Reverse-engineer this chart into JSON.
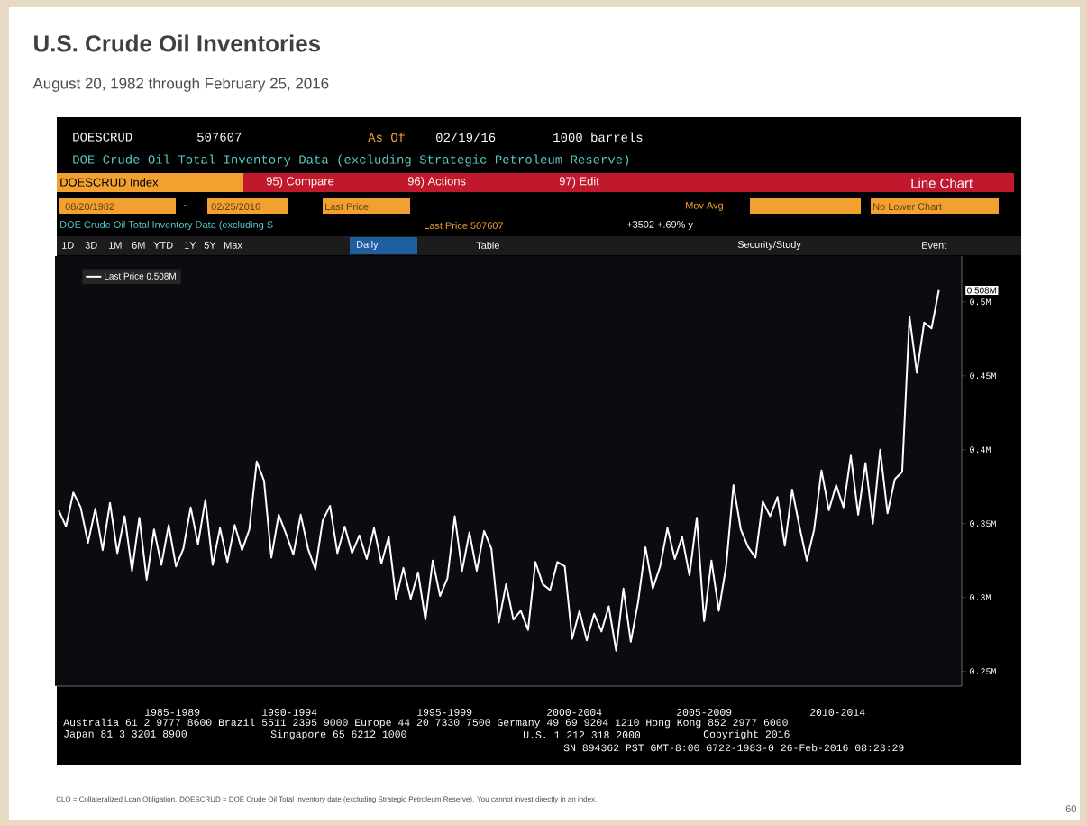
{
  "chart_data": {
    "type": "line",
    "title": "U.S. Crude Oil Inventories",
    "subtitle": "August 20, 1982 through February 25, 2016",
    "categories": [
      null,
      null,
      null,
      null,
      null,
      null,
      null,
      null,
      null,
      null,
      null,
      null,
      null,
      null,
      null,
      null,
      null,
      null,
      null,
      null,
      null,
      null,
      null,
      null,
      null,
      null,
      null,
      null,
      null,
      null,
      null,
      null,
      null,
      null,
      null,
      null,
      null,
      null,
      null,
      null,
      null,
      null,
      null,
      null,
      null,
      null,
      null,
      null,
      null,
      null,
      null,
      null,
      null,
      null,
      null,
      null,
      null,
      null,
      null,
      null,
      null,
      null,
      null,
      null,
      null,
      null,
      null,
      null,
      null,
      null,
      null,
      null,
      null,
      null,
      null,
      null,
      null,
      null,
      null,
      null,
      null,
      null,
      null,
      null,
      null,
      null,
      null,
      null,
      null,
      null,
      null,
      null,
      null,
      null,
      null,
      null,
      null,
      null,
      null,
      null,
      null,
      null,
      null,
      null,
      null,
      null,
      null,
      null,
      null,
      null,
      null,
      null,
      null,
      null,
      null,
      null,
      null,
      null,
      null,
      null,
      null
    ],
    "series": [
      {
        "name": "Last Price 0.508M",
        "color": "#ffffff",
        "values": [
          0.359,
          0.348,
          0.371,
          0.361,
          0.337,
          0.36,
          0.332,
          0.364,
          0.33,
          0.355,
          0.318,
          0.354,
          0.312,
          0.346,
          0.322,
          0.349,
          0.321,
          0.333,
          0.361,
          0.336,
          0.366,
          0.322,
          0.347,
          0.324,
          0.349,
          0.332,
          0.346,
          0.392,
          0.379,
          0.327,
          0.356,
          0.343,
          0.329,
          0.356,
          0.333,
          0.319,
          0.352,
          0.362,
          0.33,
          0.348,
          0.33,
          0.342,
          0.326,
          0.347,
          0.323,
          0.341,
          0.299,
          0.32,
          0.299,
          0.317,
          0.285,
          0.325,
          0.301,
          0.313,
          0.355,
          0.318,
          0.344,
          0.318,
          0.345,
          0.333,
          0.283,
          0.309,
          0.285,
          0.291,
          0.278,
          0.324,
          0.309,
          0.305,
          0.324,
          0.321,
          0.272,
          0.291,
          0.271,
          0.289,
          0.277,
          0.294,
          0.264,
          0.306,
          0.27,
          0.297,
          0.334,
          0.306,
          0.321,
          0.347,
          0.326,
          0.341,
          0.315,
          0.354,
          0.284,
          0.325,
          0.291,
          0.321,
          0.376,
          0.346,
          0.334,
          0.327,
          0.365,
          0.355,
          0.368,
          0.335,
          0.373,
          0.348,
          0.325,
          0.346,
          0.386,
          0.359,
          0.376,
          0.361,
          0.396,
          0.356,
          0.391,
          0.35,
          0.4,
          0.357,
          0.38,
          0.385,
          0.49,
          0.452,
          0.486,
          0.482,
          0.508
        ]
      }
    ],
    "ylim": [
      0.24,
      0.531
    ],
    "yticks": [
      {
        "value": 0.25,
        "label": "0.25M"
      },
      {
        "value": 0.3,
        "label": "0.3M"
      },
      {
        "value": 0.35,
        "label": "0.35M"
      },
      {
        "value": 0.4,
        "label": "0.4M"
      },
      {
        "value": 0.45,
        "label": "0.45M"
      },
      {
        "value": 0.5,
        "label": "0.5M"
      }
    ],
    "legend": "top left",
    "grid": false,
    "marker": "none",
    "line_style": "solid",
    "annotations": [
      "0.508M",
      "DOESCRUD",
      "507607",
      "As Of",
      "02/19/16",
      "1000 barrels",
      "DOE Crude Oil Total Inventory Data (excluding Strategic Petroleum Reserve)",
      "DOESCRUD Index",
      "95) Compare",
      "96) Actions",
      "97) Edit",
      "Line Chart",
      "08/20/1982",
      "-",
      "02/25/2016",
      "Last Price",
      "Mov Avg",
      "No Lower Chart",
      "DOE Crude Oil Total Inventory Data (excluding S",
      "Last Price 507607",
      "+3502 +.69% y",
      "1D",
      "3D",
      "1M",
      "6M",
      "YTD",
      "1Y",
      "5Y",
      "Max",
      "Daily",
      "Table",
      "Security/Study",
      "Event",
      "1985-1989",
      "1990-1994",
      "1995-1999",
      "2000-2004",
      "2005-2009",
      "2010-2014",
      "Australia 61 2 9777 8600 Brazil 5511 2395 9000 Europe 44 20 7330 7500 Germany 49 69 9204 1210 Hong Kong 852 2977 6000",
      "Japan 81 3 3201 8900",
      "Singapore 65 6212 1000",
      "U.S. 1 212 318 2000",
      "Copyright 2016",
      "SN 894362 PST  GMT-8:00 G722-1983-0 26-Feb-2016 08:23:29",
      "CLO = Collateralized Loan Obligation. DOESCRUD = DOE Crude Oil Total Inventory date (excluding Strategic Petroleum Reserve). You cannot invest directly in an index.",
      "60"
    ]
  }
}
